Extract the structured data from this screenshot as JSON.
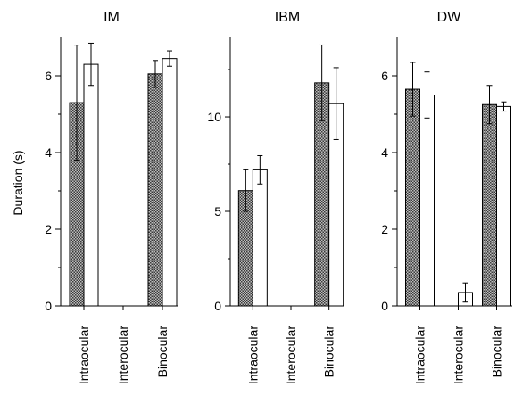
{
  "chart_data": {
    "type": "bar",
    "ylabel": "Duration (s)",
    "categories": [
      "Intraocular",
      "Interocular",
      "Binocular"
    ],
    "colors": {
      "filled": "#7a7a7a",
      "open": "#ffffff",
      "stroke": "#000000"
    },
    "panels": [
      {
        "title": "IM",
        "ylim": [
          0,
          7
        ],
        "yticks": [
          0,
          2,
          4,
          6
        ],
        "series": [
          {
            "style": "filled",
            "values": [
              5.3,
              0.0,
              6.05
            ],
            "errors": [
              1.5,
              0.0,
              0.35
            ]
          },
          {
            "style": "open",
            "values": [
              6.3,
              0.0,
              6.45
            ],
            "errors": [
              0.55,
              0.0,
              0.2
            ]
          }
        ]
      },
      {
        "title": "IBM",
        "ylim": [
          0,
          14.2
        ],
        "yticks": [
          0,
          5,
          10
        ],
        "series": [
          {
            "style": "filled",
            "values": [
              6.1,
              0.0,
              11.8
            ],
            "errors": [
              1.1,
              0.0,
              2.0
            ]
          },
          {
            "style": "open",
            "values": [
              7.2,
              0.0,
              10.7
            ],
            "errors": [
              0.75,
              0.0,
              1.9
            ]
          }
        ]
      },
      {
        "title": "DW",
        "ylim": [
          0,
          7
        ],
        "yticks": [
          0,
          2,
          4,
          6
        ],
        "series": [
          {
            "style": "filled",
            "values": [
              5.65,
              0.0,
              5.25
            ],
            "errors": [
              0.7,
              0.0,
              0.5
            ]
          },
          {
            "style": "open",
            "values": [
              5.5,
              0.35,
              5.2
            ],
            "errors": [
              0.6,
              0.25,
              0.12
            ]
          }
        ]
      }
    ]
  }
}
